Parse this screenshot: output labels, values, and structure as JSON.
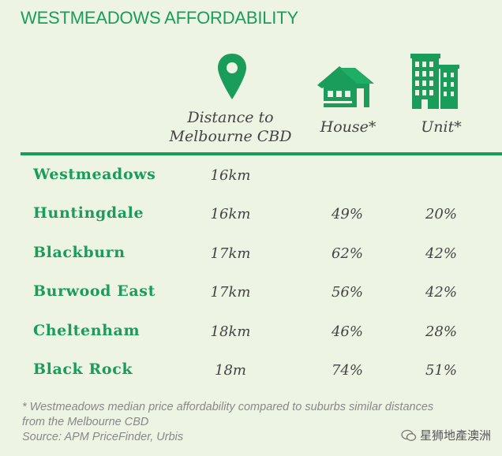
{
  "title": "WESTMEADOWS AFFORDABILITY",
  "columns": {
    "distance": [
      "Distance to",
      "Melbourne CBD"
    ],
    "house": "House*",
    "unit": "Unit*"
  },
  "icons": {
    "distance": "map-pin-icon",
    "house": "house-icon",
    "unit": "apartment-building-icon"
  },
  "colors": {
    "accent": "#1a9c5b",
    "background": "#eef4e4",
    "text": "#444444"
  },
  "rows": [
    {
      "suburb": "Westmeadows",
      "distance": "16km",
      "house": "",
      "unit": ""
    },
    {
      "suburb": "Huntingdale",
      "distance": "16km",
      "house": "49%",
      "unit": "20%"
    },
    {
      "suburb": "Blackburn",
      "distance": "17km",
      "house": "62%",
      "unit": "42%"
    },
    {
      "suburb": "Burwood East",
      "distance": "17km",
      "house": "56%",
      "unit": "42%"
    },
    {
      "suburb": "Cheltenham",
      "distance": "18km",
      "house": "46%",
      "unit": "28%"
    },
    {
      "suburb": "Black Rock",
      "distance": "18m",
      "house": "74%",
      "unit": "51%"
    }
  ],
  "footnote": {
    "line1": "* Westmeadows median price affordability compared to suburbs similar distances",
    "line2": "from the Melbourne CBD",
    "source": "Source: APM PriceFinder, Urbis"
  },
  "watermark": "星狮地產澳洲"
}
